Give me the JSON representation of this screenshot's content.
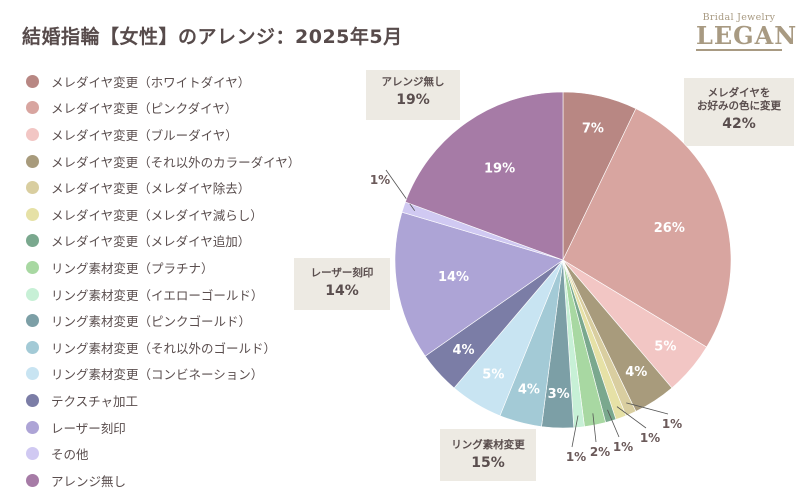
{
  "chart_data": {
    "type": "pie",
    "title": "結婚指輪【女性】のアレンジ：2025年5月",
    "start": "top",
    "direction": "clockwise",
    "slices": [
      {
        "label": "メレダイヤ変更（ホワイトダイヤ）",
        "value": 7,
        "display": "7%",
        "color": "#b88783"
      },
      {
        "label": "メレダイヤ変更（ピンクダイヤ）",
        "value": 26,
        "display": "26%",
        "color": "#d8a5a0"
      },
      {
        "label": "メレダイヤ変更（ブルーダイヤ）",
        "value": 5,
        "display": "5%",
        "color": "#f2c6c4"
      },
      {
        "label": "メレダイヤ変更（それ以外のカラーダイヤ）",
        "value": 4,
        "display": "4%",
        "color": "#a89b7c"
      },
      {
        "label": "メレダイヤ変更（メレダイヤ除去）",
        "value": 1,
        "display": "1%",
        "color": "#d9cea0"
      },
      {
        "label": "メレダイヤ変更（メレダイヤ減らし）",
        "value": 1,
        "display": "1%",
        "color": "#e6e1a6"
      },
      {
        "label": "メレダイヤ変更（メレダイヤ追加）",
        "value": 1,
        "display": "1%",
        "color": "#7aa88e"
      },
      {
        "label": "リング素材変更（プラチナ）",
        "value": 2,
        "display": "2%",
        "color": "#a8d8a2"
      },
      {
        "label": "リング素材変更（イエローゴールド）",
        "value": 1,
        "display": "1%",
        "color": "#c7f0d6"
      },
      {
        "label": "リング素材変更（ピンクゴールド）",
        "value": 3,
        "display": "3%",
        "color": "#7c9fa6"
      },
      {
        "label": "リング素材変更（それ以外のゴールド）",
        "value": 4,
        "display": "4%",
        "color": "#a3cad6"
      },
      {
        "label": "リング素材変更（コンビネーション）",
        "value": 5,
        "display": "5%",
        "color": "#c8e4f2"
      },
      {
        "label": "テクスチャ加工",
        "value": 4,
        "display": "4%",
        "color": "#7b7da6"
      },
      {
        "label": "レーザー刻印",
        "value": 14,
        "display": "14%",
        "color": "#ada4d6"
      },
      {
        "label": "その他",
        "value": 1,
        "display": "1%",
        "color": "#d0c9f2"
      },
      {
        "label": "アレンジ無し",
        "value": 19,
        "display": "19%",
        "color": "#a67ba6"
      }
    ],
    "group_callouts": [
      {
        "label_lines": [
          "メレダイヤを",
          "お好みの色に変更"
        ],
        "value": "42%"
      },
      {
        "label_lines": [
          "アレンジ無し"
        ],
        "value": "19%"
      },
      {
        "label_lines": [
          "レーザー刻印"
        ],
        "value": "14%"
      },
      {
        "label_lines": [
          "リング素材変更"
        ],
        "value": "15%"
      }
    ],
    "legend_position": "left"
  },
  "header": {
    "title": "結婚指輪【女性】のアレンジ：2025年5月"
  },
  "logo": {
    "line1": "Bridal Jewelry",
    "line2": "LEGAN"
  },
  "colors": {
    "text": "#5a4e4e",
    "callout_bg": "#edeae3",
    "label_white": "#ffffff",
    "outside_label": "#6b5a5a"
  }
}
